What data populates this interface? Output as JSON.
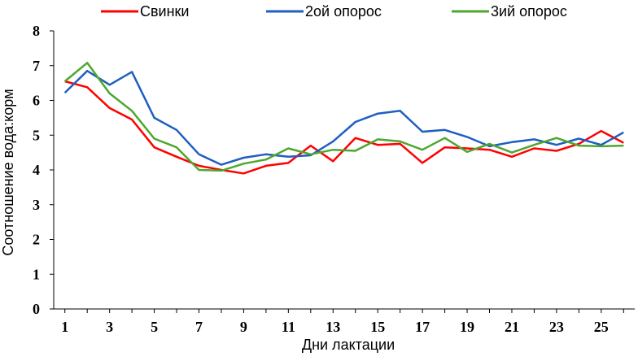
{
  "chart_data": {
    "type": "line",
    "title": "",
    "xlabel": "Дни лактации",
    "ylabel": "Соотношение вода:корм",
    "xlim": [
      1,
      26
    ],
    "ylim": [
      0,
      8
    ],
    "yticks": [
      0,
      1,
      2,
      3,
      4,
      5,
      6,
      7,
      8
    ],
    "xtick_labels": [
      "1",
      "3",
      "5",
      "7",
      "9",
      "11",
      "13",
      "15",
      "17",
      "19",
      "21",
      "23",
      "25"
    ],
    "grid": false,
    "legend_position": "top",
    "x": [
      1,
      2,
      3,
      4,
      5,
      6,
      7,
      8,
      9,
      10,
      11,
      12,
      13,
      14,
      15,
      16,
      17,
      18,
      19,
      20,
      21,
      22,
      23,
      24,
      25,
      26
    ],
    "series": [
      {
        "name": "Свинки",
        "color": "#ff0000",
        "values": [
          6.55,
          6.38,
          5.78,
          5.45,
          4.65,
          4.38,
          4.12,
          4.0,
          3.9,
          4.12,
          4.2,
          4.7,
          4.25,
          4.92,
          4.72,
          4.75,
          4.2,
          4.65,
          4.62,
          4.58,
          4.38,
          4.62,
          4.55,
          4.75,
          5.12,
          4.78
        ]
      },
      {
        "name": "2ой опорос",
        "color": "#1f5fc0",
        "values": [
          6.22,
          6.85,
          6.45,
          6.82,
          5.5,
          5.15,
          4.45,
          4.15,
          4.35,
          4.45,
          4.38,
          4.42,
          4.82,
          5.38,
          5.62,
          5.7,
          5.1,
          5.15,
          4.95,
          4.68,
          4.8,
          4.88,
          4.72,
          4.9,
          4.72,
          5.08
        ]
      },
      {
        "name": "3ий опорос",
        "color": "#4ea72e",
        "values": [
          6.55,
          7.08,
          6.2,
          5.7,
          4.9,
          4.65,
          4.0,
          3.98,
          4.18,
          4.3,
          4.62,
          4.45,
          4.58,
          4.55,
          4.88,
          4.82,
          4.58,
          4.92,
          4.52,
          4.75,
          4.5,
          4.72,
          4.92,
          4.7,
          4.68,
          4.7
        ]
      }
    ]
  }
}
